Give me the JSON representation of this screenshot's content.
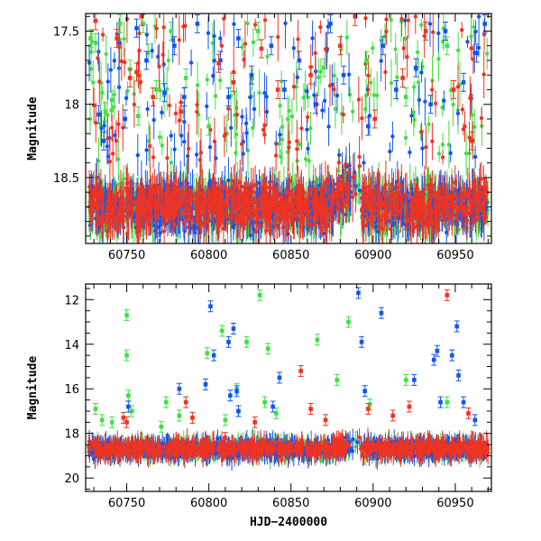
{
  "colors": {
    "green": "#44dd44",
    "blue": "#1155ee",
    "red": "#ee3322",
    "frame": "#000000"
  },
  "chart_data": [
    {
      "name": "light-curve-zoom",
      "type": "scatter",
      "xlabel": "",
      "ylabel": "Magnitude",
      "xlim": [
        60725,
        60972
      ],
      "ylim": [
        18.95,
        17.38
      ],
      "y_inverted": true,
      "x_ticks": [
        60750,
        60800,
        60850,
        60900,
        60950
      ],
      "x_tick_labels": [
        "60750",
        "60800",
        "60850",
        "60900",
        "60950"
      ],
      "y_ticks": [
        17.5,
        18,
        18.5
      ],
      "y_tick_labels": [
        "17.5",
        "18",
        "18.5"
      ],
      "series": [
        {
          "name": "green",
          "color": "green",
          "points": [
            [
              60728,
              17.55
            ],
            [
              60731,
              17.58
            ],
            [
              60737,
              18.05
            ],
            [
              60741,
              17.97
            ],
            [
              60746,
              17.45
            ],
            [
              60752,
              17.76
            ],
            [
              60757,
              18.08
            ],
            [
              60760,
              17.45
            ],
            [
              60763,
              17.65
            ],
            [
              60768,
              17.9
            ],
            [
              60777,
              17.5
            ],
            [
              60786,
              17.82
            ],
            [
              60800,
              18.15
            ],
            [
              60830,
              17.5
            ],
            [
              60870,
              17.75
            ],
            [
              60896,
              17.7
            ],
            [
              60920,
              17.95
            ],
            [
              60945,
              17.6
            ]
          ]
        },
        {
          "name": "blue",
          "color": "blue",
          "points": [
            [
              60733,
              18.07
            ],
            [
              60736,
              18.25
            ],
            [
              60749,
              18.1
            ],
            [
              60756,
              17.48
            ],
            [
              60762,
              17.7
            ],
            [
              60773,
              17.92
            ],
            [
              60779,
              17.6
            ],
            [
              60785,
              17.95
            ],
            [
              60793,
              17.45
            ],
            [
              60807,
              17.7
            ],
            [
              60812,
              17.95
            ],
            [
              60818,
              17.55
            ],
            [
              60826,
              17.8
            ],
            [
              60838,
              17.6
            ],
            [
              60846,
              17.9
            ],
            [
              60855,
              17.7
            ],
            [
              60865,
              18.0
            ],
            [
              60874,
              17.45
            ],
            [
              60882,
              17.8
            ],
            [
              60897,
              18.15
            ],
            [
              60906,
              17.6
            ],
            [
              60914,
              17.9
            ],
            [
              60926,
              17.75
            ],
            [
              60935,
              18.0
            ],
            [
              60944,
              17.5
            ],
            [
              60955,
              17.85
            ],
            [
              60963,
              17.65
            ],
            [
              60968,
              17.45
            ]
          ]
        },
        {
          "name": "red",
          "color": "red",
          "points": [
            [
              60731,
              17.43
            ],
            [
              60744,
              17.55
            ],
            [
              60752,
              17.82
            ],
            [
              60756,
              17.78
            ],
            [
              60759,
              17.4
            ],
            [
              60766,
              17.95
            ],
            [
              60783,
              18.05
            ],
            [
              60806,
              17.72
            ],
            [
              60815,
              17.85
            ],
            [
              60832,
              17.62
            ],
            [
              60842,
              17.9
            ],
            [
              60862,
              17.8
            ],
            [
              60880,
              17.6
            ],
            [
              60889,
              17.4
            ],
            [
              60901,
              18.1
            ],
            [
              60918,
              17.82
            ],
            [
              60932,
              17.5
            ],
            [
              60949,
              17.9
            ],
            [
              60960,
              18.25
            ]
          ]
        }
      ]
    },
    {
      "name": "light-curve-full",
      "type": "scatter",
      "xlabel": "HJD−2400000",
      "ylabel": "Magnitude",
      "xlim": [
        60725,
        60972
      ],
      "ylim": [
        20.6,
        11.3
      ],
      "y_inverted": true,
      "x_ticks": [
        60750,
        60800,
        60850,
        60900,
        60950
      ],
      "x_tick_labels": [
        "60750",
        "60800",
        "60850",
        "60900",
        "60950"
      ],
      "y_ticks": [
        12,
        14,
        16,
        18,
        20
      ],
      "y_tick_labels": [
        "12",
        "14",
        "16",
        "18",
        "20"
      ],
      "series": [
        {
          "name": "green",
          "color": "green",
          "points": [
            [
              60731,
              16.9
            ],
            [
              60735,
              17.4
            ],
            [
              60741,
              17.5
            ],
            [
              60750,
              12.7
            ],
            [
              60750,
              14.5
            ],
            [
              60751,
              16.3
            ],
            [
              60753,
              17.0
            ],
            [
              60771,
              17.7
            ],
            [
              60774,
              16.6
            ],
            [
              60782,
              17.2
            ],
            [
              60799,
              14.4
            ],
            [
              60808,
              13.4
            ],
            [
              60810,
              17.4
            ],
            [
              60817,
              16.0
            ],
            [
              60818,
              17.0
            ],
            [
              60823,
              13.9
            ],
            [
              60831,
              11.8
            ],
            [
              60834,
              16.6
            ],
            [
              60836,
              14.2
            ],
            [
              60841,
              17.1
            ],
            [
              60866,
              13.8
            ],
            [
              60878,
              15.6
            ],
            [
              60885,
              13.0
            ],
            [
              60898,
              16.7
            ],
            [
              60920,
              15.6
            ],
            [
              60945,
              16.6
            ]
          ]
        },
        {
          "name": "blue",
          "color": "blue",
          "points": [
            [
              60751,
              16.8
            ],
            [
              60782,
              16.0
            ],
            [
              60798,
              15.8
            ],
            [
              60801,
              12.3
            ],
            [
              60803,
              14.5
            ],
            [
              60812,
              13.9
            ],
            [
              60813,
              16.3
            ],
            [
              60815,
              13.3
            ],
            [
              60817,
              16.1
            ],
            [
              60818,
              17.0
            ],
            [
              60839,
              16.8
            ],
            [
              60843,
              15.5
            ],
            [
              60891,
              11.7
            ],
            [
              60893,
              13.9
            ],
            [
              60895,
              16.1
            ],
            [
              60905,
              12.6
            ],
            [
              60925,
              15.6
            ],
            [
              60937,
              14.7
            ],
            [
              60939,
              14.3
            ],
            [
              60941,
              16.6
            ],
            [
              60948,
              14.5
            ],
            [
              60951,
              13.2
            ],
            [
              60952,
              15.4
            ],
            [
              60955,
              16.6
            ],
            [
              60962,
              17.4
            ]
          ]
        },
        {
          "name": "red",
          "color": "red",
          "points": [
            [
              60748,
              17.3
            ],
            [
              60750,
              17.5
            ],
            [
              60786,
              16.6
            ],
            [
              60790,
              17.3
            ],
            [
              60810,
              18.2
            ],
            [
              60828,
              17.5
            ],
            [
              60856,
              15.2
            ],
            [
              60862,
              16.9
            ],
            [
              60871,
              17.4
            ],
            [
              60897,
              16.9
            ],
            [
              60912,
              17.2
            ],
            [
              60922,
              16.8
            ],
            [
              60945,
              11.8
            ],
            [
              60958,
              17.1
            ]
          ]
        }
      ]
    }
  ]
}
